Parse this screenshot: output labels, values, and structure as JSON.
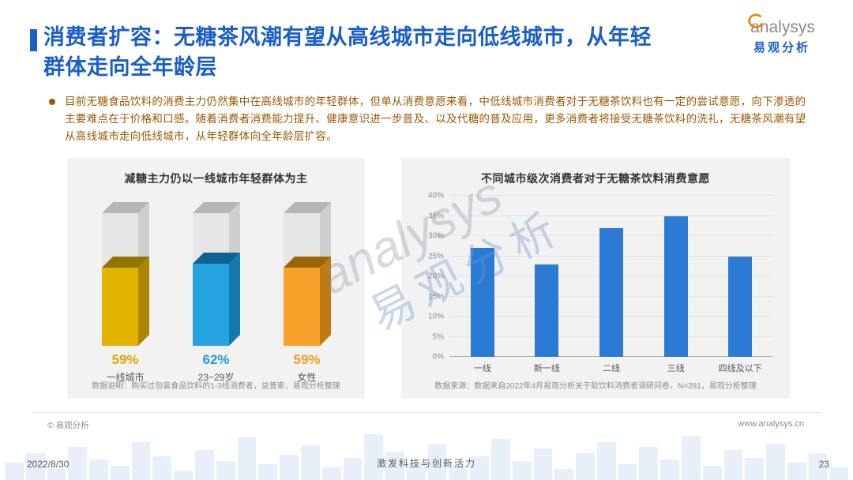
{
  "header": {
    "title": "消费者扩容：无糖茶风潮有望从高线城市走向低线城市，从年轻群体走向全年龄层",
    "accent_color": "#1A5EC8"
  },
  "logo": {
    "brand_en": "analysys",
    "brand_cn": "易观分析",
    "swoosh_color": "#F08300"
  },
  "summary": {
    "bullet_text": "目前无糖食品饮料的消费主力仍然集中在高线城市的年轻群体，但单从消费意愿来看，中低线城市消费者对于无糖茶饮料也有一定的尝试意愿，向下渗透的主要难点在于价格和口感。随着消费者消费能力提升、健康意识进一步普及、以及代糖的普及应用，更多消费者将接受无糖茶饮料的洗礼，无糖茶风潮有望从高线城市走向低线城市，从年轻群体向全年龄层扩容。",
    "text_color": "#9C5700"
  },
  "watermark": {
    "text_en": "analysys",
    "text_cn": "易观分析"
  },
  "chart_data": [
    {
      "type": "bar",
      "variant": "3d-fill-column",
      "title": "减糖主力仍以一线城市年轻群体为主",
      "categories": [
        "一线城市",
        "23~29岁",
        "女性"
      ],
      "values": [
        59,
        62,
        59
      ],
      "value_labels": [
        "59%",
        "62%",
        "59%"
      ],
      "unit": "%",
      "ylim": [
        0,
        100
      ],
      "colors": [
        {
          "label": "#D9A800",
          "front": "#E2B400",
          "side": "#A98700",
          "surface": "#8F7600"
        },
        {
          "label": "#1E9BE0",
          "front": "#25A2E0",
          "side": "#1578AC",
          "surface": "#0F6392"
        },
        {
          "label": "#F59A23",
          "front": "#F7A32B",
          "side": "#BF7B12",
          "surface": "#9C6408"
        }
      ],
      "empty_colors": {
        "front": "#E6E6E6",
        "side": "#CFCFCF",
        "lid": "#B7B7B7"
      },
      "note": "数据说明：购买过包装食品饮料的1-3线消费者，益普索，易观分析整理"
    },
    {
      "type": "bar",
      "title": "不同城市级次消费者对于无糖茶饮料消费意愿",
      "categories": [
        "一线",
        "新一线",
        "二线",
        "三线",
        "四线及以下"
      ],
      "values": [
        27,
        23,
        32,
        35,
        25
      ],
      "ylim": [
        0,
        40
      ],
      "ytick_step": 5,
      "ytick_suffix": "%",
      "bar_color": "#2B7BD4",
      "grid": true,
      "legend": false,
      "note": "数据来源：数据来自2022年4月易观分析关于软饮料消费者调研问卷，N=281，易观分析整理"
    }
  ],
  "footer": {
    "copyright": "© 易观分析",
    "website": "www.analysys.cn",
    "date": "2022/8/30",
    "slogan": "激发科技与创新活力",
    "page_number": "23"
  }
}
